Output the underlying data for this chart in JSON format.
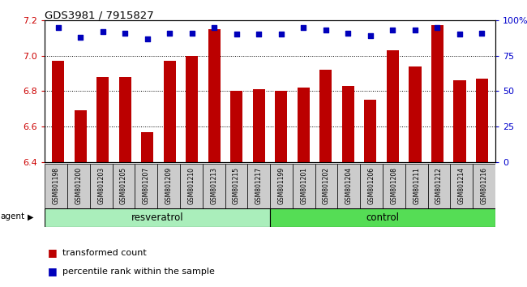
{
  "title": "GDS3981 / 7915827",
  "samples": [
    "GSM801198",
    "GSM801200",
    "GSM801203",
    "GSM801205",
    "GSM801207",
    "GSM801209",
    "GSM801210",
    "GSM801213",
    "GSM801215",
    "GSM801217",
    "GSM801199",
    "GSM801201",
    "GSM801202",
    "GSM801204",
    "GSM801206",
    "GSM801208",
    "GSM801211",
    "GSM801212",
    "GSM801214",
    "GSM801216"
  ],
  "bar_values": [
    6.97,
    6.69,
    6.88,
    6.88,
    6.57,
    6.97,
    7.0,
    7.15,
    6.8,
    6.81,
    6.8,
    6.82,
    6.92,
    6.83,
    6.75,
    7.03,
    6.94,
    7.17,
    6.86,
    6.87
  ],
  "percentile_values": [
    95,
    88,
    92,
    91,
    87,
    91,
    91,
    95,
    90,
    90,
    90,
    95,
    93,
    91,
    89,
    93,
    93,
    95,
    90,
    91
  ],
  "resveratrol_count": 10,
  "control_count": 10,
  "ymin": 6.4,
  "ymax": 7.2,
  "ylim_left": [
    6.4,
    7.2
  ],
  "ylim_right": [
    0,
    100
  ],
  "yticks_left": [
    6.4,
    6.6,
    6.8,
    7.0,
    7.2
  ],
  "yticks_right": [
    0,
    25,
    50,
    75,
    100
  ],
  "bar_color": "#bb0000",
  "dot_color": "#0000bb",
  "resveratrol_color": "#aaeebb",
  "control_color": "#55dd55",
  "tick_label_bg": "#cccccc",
  "grid_color": "#000000",
  "title_color": "#000000",
  "left_axis_color": "#cc0000",
  "right_axis_color": "#0000cc",
  "legend_bar_label": "transformed count",
  "legend_dot_label": "percentile rank within the sample",
  "agent_label": "agent",
  "resveratrol_label": "resveratrol",
  "control_label": "control"
}
